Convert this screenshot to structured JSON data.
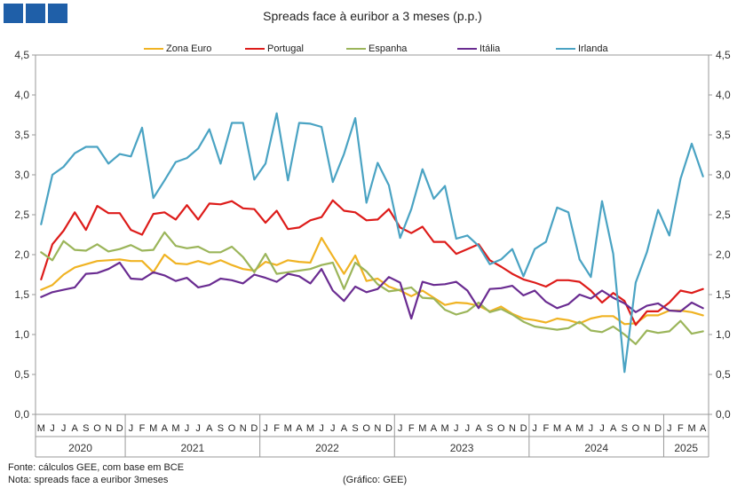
{
  "chart_data": {
    "type": "line",
    "title": "Spreads face à euribor a 3 meses (p.p.)",
    "ylim": [
      0,
      4.5
    ],
    "yticks": [
      "0,0",
      "0,5",
      "1,0",
      "1,5",
      "2,0",
      "2,5",
      "3,0",
      "3,5",
      "4,0",
      "4,5"
    ],
    "month_labels": [
      "M",
      "J",
      "J",
      "A",
      "S",
      "O",
      "N",
      "D",
      "J",
      "F",
      "M",
      "A",
      "M",
      "J",
      "J",
      "A",
      "S",
      "O",
      "N",
      "D",
      "J",
      "F",
      "M",
      "A",
      "M",
      "J",
      "J",
      "A",
      "S",
      "O",
      "N",
      "D",
      "J",
      "F",
      "M",
      "A",
      "M",
      "J",
      "J",
      "A",
      "S",
      "O",
      "N",
      "D",
      "J",
      "F",
      "M",
      "A",
      "M",
      "J",
      "J",
      "A",
      "S",
      "O",
      "N",
      "D",
      "J",
      "F",
      "M",
      "A"
    ],
    "years": [
      {
        "label": "2020",
        "months": 8
      },
      {
        "label": "2021",
        "months": 12
      },
      {
        "label": "2022",
        "months": 12
      },
      {
        "label": "2023",
        "months": 12
      },
      {
        "label": "2024",
        "months": 12
      },
      {
        "label": "2025",
        "months": 4
      }
    ],
    "series": [
      {
        "name": "Zona Euro",
        "color": "#f0b323",
        "values": [
          1.56,
          1.62,
          1.75,
          1.84,
          1.88,
          1.92,
          1.93,
          1.94,
          1.92,
          1.92,
          1.78,
          2.0,
          1.89,
          1.88,
          1.92,
          1.88,
          1.93,
          1.87,
          1.82,
          1.8,
          1.91,
          1.87,
          1.93,
          1.91,
          1.9,
          2.21,
          1.98,
          1.76,
          1.99,
          1.67,
          1.7,
          1.6,
          1.55,
          1.48,
          1.55,
          1.46,
          1.37,
          1.4,
          1.39,
          1.36,
          1.29,
          1.35,
          1.26,
          1.2,
          1.18,
          1.15,
          1.2,
          1.18,
          1.14,
          1.2,
          1.23,
          1.23,
          1.13,
          1.14,
          1.24,
          1.24,
          1.3,
          1.3,
          1.28,
          1.24
        ]
      },
      {
        "name": "Portugal",
        "color": "#dd1c1a",
        "values": [
          1.69,
          2.13,
          2.3,
          2.53,
          2.31,
          2.61,
          2.52,
          2.52,
          2.31,
          2.25,
          2.51,
          2.53,
          2.44,
          2.62,
          2.44,
          2.64,
          2.63,
          2.67,
          2.58,
          2.57,
          2.4,
          2.55,
          2.32,
          2.34,
          2.43,
          2.47,
          2.68,
          2.55,
          2.53,
          2.43,
          2.44,
          2.57,
          2.34,
          2.27,
          2.35,
          2.16,
          2.16,
          2.01,
          2.07,
          2.13,
          1.93,
          1.85,
          1.76,
          1.69,
          1.65,
          1.6,
          1.68,
          1.68,
          1.66,
          1.55,
          1.4,
          1.52,
          1.42,
          1.12,
          1.29,
          1.29,
          1.4,
          1.55,
          1.52,
          1.57
        ]
      },
      {
        "name": "Espanha",
        "color": "#9bb55a",
        "values": [
          2.03,
          1.93,
          2.17,
          2.06,
          2.05,
          2.13,
          2.04,
          2.07,
          2.12,
          2.05,
          2.06,
          2.28,
          2.11,
          2.08,
          2.1,
          2.03,
          2.03,
          2.1,
          1.97,
          1.78,
          2.01,
          1.76,
          1.78,
          1.8,
          1.82,
          1.87,
          1.9,
          1.57,
          1.9,
          1.79,
          1.63,
          1.54,
          1.56,
          1.59,
          1.46,
          1.45,
          1.31,
          1.25,
          1.29,
          1.4,
          1.28,
          1.32,
          1.25,
          1.16,
          1.1,
          1.08,
          1.06,
          1.08,
          1.16,
          1.05,
          1.03,
          1.1,
          1.0,
          0.88,
          1.05,
          1.02,
          1.04,
          1.17,
          1.01,
          1.04
        ]
      },
      {
        "name": "Itália",
        "color": "#6a2c91",
        "values": [
          1.47,
          1.53,
          1.56,
          1.59,
          1.76,
          1.77,
          1.82,
          1.9,
          1.7,
          1.69,
          1.78,
          1.74,
          1.67,
          1.71,
          1.59,
          1.62,
          1.7,
          1.68,
          1.64,
          1.75,
          1.71,
          1.66,
          1.76,
          1.73,
          1.64,
          1.82,
          1.55,
          1.42,
          1.6,
          1.53,
          1.57,
          1.72,
          1.65,
          1.2,
          1.66,
          1.62,
          1.63,
          1.66,
          1.55,
          1.33,
          1.57,
          1.58,
          1.61,
          1.49,
          1.55,
          1.41,
          1.33,
          1.38,
          1.5,
          1.45,
          1.55,
          1.46,
          1.39,
          1.28,
          1.36,
          1.39,
          1.3,
          1.29,
          1.4,
          1.33
        ]
      },
      {
        "name": "Irlanda",
        "color": "#4aa3c3",
        "values": [
          2.38,
          3.0,
          3.1,
          3.27,
          3.35,
          3.35,
          3.14,
          3.26,
          3.23,
          3.59,
          2.71,
          2.93,
          3.16,
          3.21,
          3.33,
          3.57,
          3.14,
          3.65,
          3.65,
          2.94,
          3.14,
          3.77,
          2.93,
          3.65,
          3.64,
          3.6,
          2.91,
          3.26,
          3.71,
          2.65,
          3.15,
          2.87,
          2.21,
          2.57,
          3.07,
          2.7,
          2.86,
          2.2,
          2.24,
          2.11,
          1.88,
          1.94,
          2.07,
          1.73,
          2.07,
          2.16,
          2.59,
          2.53,
          1.94,
          1.72,
          2.67,
          2.01,
          0.53,
          1.65,
          2.03,
          2.56,
          2.24,
          2.95,
          3.39,
          2.98
        ]
      }
    ]
  },
  "footer": {
    "source": "Fonte: cálculos GEE, com base em BCE",
    "note": "Nota: spreads face a euribor 3meses",
    "credit": "(Gráfico: GEE)"
  }
}
